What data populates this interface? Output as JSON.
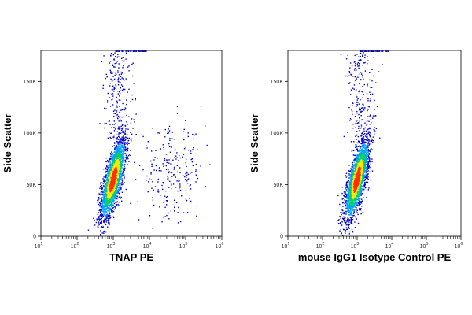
{
  "chart_data": [
    {
      "type": "scatter",
      "title": "",
      "xlabel": "TNAP PE",
      "ylabel": "Side Scatter",
      "x_scale": "log",
      "xlim": [
        10,
        1000000
      ],
      "ylim": [
        0,
        180000
      ],
      "x_ticks": [
        "10^1",
        "10^2",
        "10^3",
        "10^4",
        "10^5",
        "10^6"
      ],
      "y_ticks": [
        "0",
        "50K",
        "100K",
        "150K"
      ],
      "density_colors": [
        "#0000cc",
        "#00a0ff",
        "#00d060",
        "#ffe600",
        "#ff3000"
      ],
      "populations": [
        {
          "name": "",
          "center_x": 1000,
          "center_y": 55000,
          "count": 2600
        },
        {
          "name": "",
          "center_x": 40000,
          "center_y": 60000,
          "count": 250
        }
      ]
    },
    {
      "type": "scatter",
      "title": "",
      "xlabel": "mouse IgG1 Isotype Control PE",
      "ylabel": "Side Scatter",
      "x_scale": "log",
      "xlim": [
        10,
        1000000
      ],
      "ylim": [
        0,
        180000
      ],
      "x_ticks": [
        "10^1",
        "10^2",
        "10^3",
        "10^4",
        "10^5",
        "10^6"
      ],
      "y_ticks": [
        "0",
        "50K",
        "100K",
        "150K"
      ],
      "density_colors": [
        "#0000cc",
        "#00a0ff",
        "#00d060",
        "#ffe600",
        "#ff3000"
      ],
      "populations": [
        {
          "name": "",
          "center_x": 1000,
          "center_y": 55000,
          "count": 2500
        }
      ]
    }
  ]
}
